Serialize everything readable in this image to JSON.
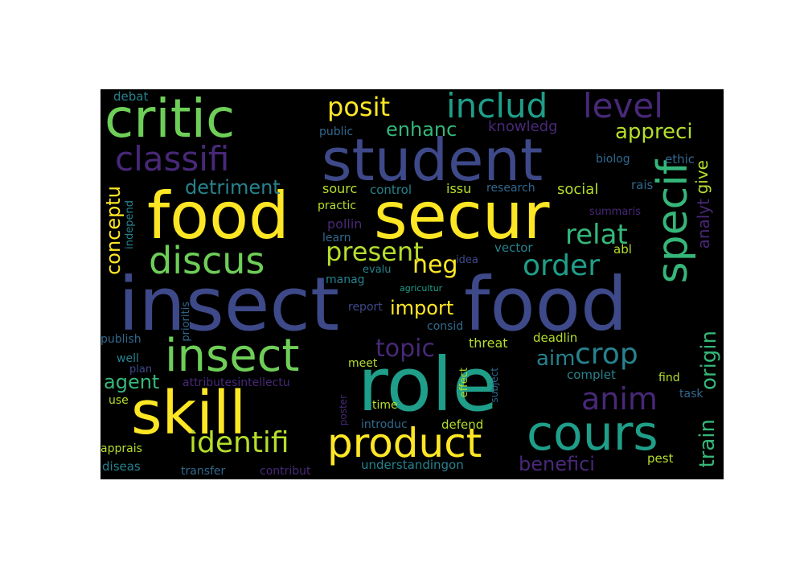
{
  "palette": {
    "background": "#000000",
    "page": "#ffffff",
    "yellow": "#fde725",
    "lime": "#b5de2b",
    "lightgreen": "#6ece58",
    "green": "#35b779",
    "teal": "#1f9e89",
    "cyan": "#26828e",
    "blue": "#31688e",
    "indigo": "#3e4989",
    "purple": "#482878",
    "darkpurple": "#440154"
  },
  "words": {
    "insect_food_1": "insect",
    "insect_food_2": "food",
    "food": "food",
    "secur": "secur",
    "student": "student",
    "critic": "critic",
    "role": "role",
    "skill": "skill",
    "insect": "insect",
    "specif": "specif",
    "product": "product",
    "cours": "cours",
    "discus": "discus",
    "classifi": "classifi",
    "includ": "includ",
    "level": "level",
    "posit": "posit",
    "present": "present",
    "order": "order",
    "relat": "relat",
    "anim": "anim",
    "identifi": "identifi",
    "crop": "crop",
    "topic": "topic",
    "neg": "neg",
    "import": "import",
    "appreci": "appreci",
    "enhanc": "enhanc",
    "knowledg": "knowledg",
    "detriment": "detriment",
    "conceptu": "conceptu",
    "agent": "agent",
    "benefici": "benefici",
    "aim": "aim",
    "origin": "origin",
    "train": "train",
    "give": "give",
    "analyt": "analyt",
    "social": "social",
    "sourc": "sourc",
    "control": "control",
    "issu": "issu",
    "research": "research",
    "practic": "practic",
    "pollin": "pollin",
    "learn": "learn",
    "public": "public",
    "debat": "debat",
    "biolog": "biolog",
    "ethic": "ethic",
    "rais": "rais",
    "summaris": "summaris",
    "abl": "abl",
    "vector": "vector",
    "idea": "idea",
    "manag": "manag",
    "evalu": "evalu",
    "agricultur": "agricultur",
    "report": "report",
    "consid": "consid",
    "deadlin": "deadlin",
    "threat": "threat",
    "meet": "meet",
    "complet": "complet",
    "find": "find",
    "task": "task",
    "pest": "pest",
    "well": "well",
    "plan": "plan",
    "use": "use",
    "apprais": "apprais",
    "diseas": "diseas",
    "transfer": "transfer",
    "contribut": "contribut",
    "understandingon": "understandingon",
    "introduc": "introduc",
    "defend": "defend",
    "time": "time",
    "effect": "effect",
    "subject": "subject",
    "poster": "poster",
    "attributesintellectu": "attributesintellectu",
    "publish": "publish",
    "prioritis": "prioritis",
    "independ": "independ"
  }
}
